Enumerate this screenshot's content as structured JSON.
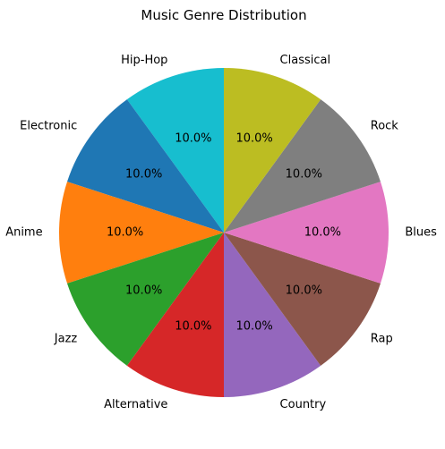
{
  "chart_data": {
    "type": "pie",
    "title": "Music Genre Distribution",
    "categories": [
      "Hip-Hop",
      "Electronic",
      "Anime",
      "Jazz",
      "Alternative",
      "Country",
      "Rap",
      "Blues",
      "Rock",
      "Classical"
    ],
    "values": [
      10,
      10,
      10,
      10,
      10,
      10,
      10,
      10,
      10,
      10
    ],
    "percent_labels": [
      "10.0%",
      "10.0%",
      "10.0%",
      "10.0%",
      "10.0%",
      "10.0%",
      "10.0%",
      "10.0%",
      "10.0%",
      "10.0%"
    ],
    "colors": [
      "#17becf",
      "#1f77b4",
      "#ff7f0e",
      "#2ca02c",
      "#d62728",
      "#9467bd",
      "#8c564b",
      "#e377c2",
      "#7f7f7f",
      "#bcbd22"
    ],
    "start_angle_deg": 90,
    "direction": "counterclockwise",
    "legend": "none"
  }
}
